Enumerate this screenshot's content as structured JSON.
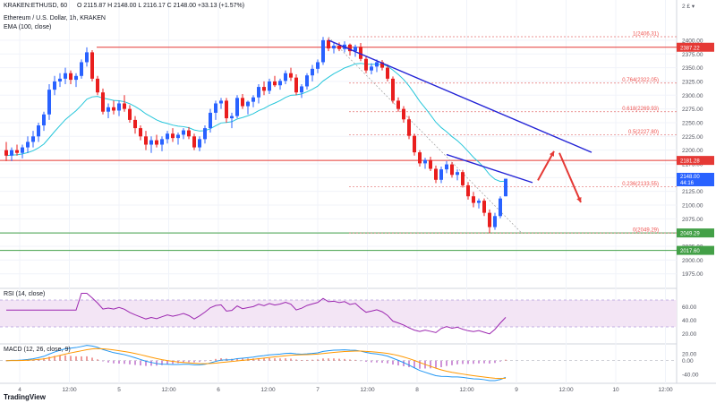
{
  "header": {
    "symbol": "KRAKEN:ETHUSD, 60",
    "ohlc": "O 2115.87  H 2148.00  L 2116.17  C 2148.00  +33.13 (+1.57%)",
    "title_line": "Ethereum / U.S. Dollar, 1h, KRAKEN",
    "ema_label": "EMA (100, close)"
  },
  "time_labels": [
    "4",
    "12:00",
    "5",
    "12:00",
    "6",
    "12:00",
    "7",
    "12:00",
    "8",
    "12:00",
    "9",
    "12:00",
    "10",
    "12:00"
  ],
  "price_axis": {
    "range": [
      1955,
      2408
    ],
    "ticks": [
      1975,
      2000,
      2025,
      2050,
      2075,
      2100,
      2125,
      2150,
      2175,
      2200,
      2225,
      2250,
      2275,
      2300,
      2325,
      2350,
      2375,
      2400
    ],
    "current_price_label": "2148.00",
    "countdown": "44:16",
    "label_2 E": "2 £ ▾"
  },
  "levels": [
    {
      "value": 2387.22,
      "label": "2387.22",
      "color": "#e53935"
    },
    {
      "value": 2181.28,
      "label": "2181.28",
      "color": "#e53935"
    },
    {
      "value": 2049.29,
      "label": "2049.29",
      "color": "#43a047"
    },
    {
      "value": 2017.6,
      "label": "2017.60",
      "color": "#43a047"
    }
  ],
  "fib": [
    {
      "value": 2406.31,
      "label": "1(2406.31)"
    },
    {
      "value": 2322.05,
      "label": "0.764(2322.05)"
    },
    {
      "value": 2269.93,
      "label": "0.618(2269.93)"
    },
    {
      "value": 2227.8,
      "label": "0.5(2227.80)"
    },
    {
      "value": 2133.55,
      "label": "0.236(2133.55)"
    },
    {
      "value": 2049.29,
      "label": "0(2049.29)"
    }
  ],
  "rsi": {
    "label": "RSI (14, close)",
    "range": [
      10,
      82
    ],
    "ticks": [
      20,
      40,
      60
    ],
    "band": [
      30,
      70
    ]
  },
  "macd": {
    "label": "MACD (12, 26, close, 9)",
    "range": [
      -55,
      38
    ],
    "ticks": [
      -40,
      0,
      20
    ]
  },
  "colors": {
    "up": "#2962ff",
    "down": "#e91e1e",
    "ema": "#26c6da",
    "trend": "#2323d6",
    "rsi": "#9c27b0",
    "rsi_band": "#f3e5f5",
    "macd": "#2196f3",
    "signal": "#ff9800"
  },
  "chart_data": {
    "type": "candlestick",
    "ema_period": 100,
    "candles": [
      {
        "o": 2200,
        "h": 2215,
        "l": 2180,
        "c": 2190
      },
      {
        "o": 2190,
        "h": 2205,
        "l": 2180,
        "c": 2200
      },
      {
        "o": 2200,
        "h": 2210,
        "l": 2190,
        "c": 2195
      },
      {
        "o": 2195,
        "h": 2210,
        "l": 2185,
        "c": 2205
      },
      {
        "o": 2205,
        "h": 2225,
        "l": 2195,
        "c": 2215
      },
      {
        "o": 2215,
        "h": 2235,
        "l": 2205,
        "c": 2225
      },
      {
        "o": 2225,
        "h": 2250,
        "l": 2215,
        "c": 2245
      },
      {
        "o": 2245,
        "h": 2270,
        "l": 2235,
        "c": 2265
      },
      {
        "o": 2265,
        "h": 2320,
        "l": 2255,
        "c": 2310
      },
      {
        "o": 2310,
        "h": 2335,
        "l": 2300,
        "c": 2325
      },
      {
        "o": 2325,
        "h": 2340,
        "l": 2315,
        "c": 2330
      },
      {
        "o": 2330,
        "h": 2350,
        "l": 2320,
        "c": 2340
      },
      {
        "o": 2340,
        "h": 2345,
        "l": 2320,
        "c": 2328
      },
      {
        "o": 2328,
        "h": 2340,
        "l": 2315,
        "c": 2335
      },
      {
        "o": 2335,
        "h": 2365,
        "l": 2330,
        "c": 2360
      },
      {
        "o": 2360,
        "h": 2387,
        "l": 2352,
        "c": 2378
      },
      {
        "o": 2378,
        "h": 2382,
        "l": 2325,
        "c": 2330
      },
      {
        "o": 2330,
        "h": 2335,
        "l": 2300,
        "c": 2305
      },
      {
        "o": 2305,
        "h": 2312,
        "l": 2265,
        "c": 2270
      },
      {
        "o": 2270,
        "h": 2285,
        "l": 2258,
        "c": 2278
      },
      {
        "o": 2278,
        "h": 2290,
        "l": 2265,
        "c": 2272
      },
      {
        "o": 2272,
        "h": 2290,
        "l": 2262,
        "c": 2285
      },
      {
        "o": 2285,
        "h": 2300,
        "l": 2270,
        "c": 2275
      },
      {
        "o": 2275,
        "h": 2282,
        "l": 2250,
        "c": 2255
      },
      {
        "o": 2255,
        "h": 2262,
        "l": 2230,
        "c": 2240
      },
      {
        "o": 2240,
        "h": 2245,
        "l": 2218,
        "c": 2225
      },
      {
        "o": 2225,
        "h": 2235,
        "l": 2200,
        "c": 2210
      },
      {
        "o": 2210,
        "h": 2225,
        "l": 2195,
        "c": 2218
      },
      {
        "o": 2218,
        "h": 2228,
        "l": 2205,
        "c": 2210
      },
      {
        "o": 2210,
        "h": 2225,
        "l": 2198,
        "c": 2220
      },
      {
        "o": 2220,
        "h": 2235,
        "l": 2212,
        "c": 2230
      },
      {
        "o": 2230,
        "h": 2240,
        "l": 2215,
        "c": 2222
      },
      {
        "o": 2222,
        "h": 2232,
        "l": 2210,
        "c": 2228
      },
      {
        "o": 2228,
        "h": 2240,
        "l": 2220,
        "c": 2236
      },
      {
        "o": 2236,
        "h": 2242,
        "l": 2220,
        "c": 2225
      },
      {
        "o": 2225,
        "h": 2230,
        "l": 2200,
        "c": 2205
      },
      {
        "o": 2205,
        "h": 2225,
        "l": 2198,
        "c": 2220
      },
      {
        "o": 2220,
        "h": 2245,
        "l": 2212,
        "c": 2240
      },
      {
        "o": 2240,
        "h": 2275,
        "l": 2232,
        "c": 2268
      },
      {
        "o": 2268,
        "h": 2290,
        "l": 2255,
        "c": 2285
      },
      {
        "o": 2285,
        "h": 2295,
        "l": 2275,
        "c": 2290
      },
      {
        "o": 2290,
        "h": 2295,
        "l": 2250,
        "c": 2258
      },
      {
        "o": 2258,
        "h": 2268,
        "l": 2240,
        "c": 2262
      },
      {
        "o": 2262,
        "h": 2300,
        "l": 2258,
        "c": 2295
      },
      {
        "o": 2295,
        "h": 2302,
        "l": 2275,
        "c": 2280
      },
      {
        "o": 2280,
        "h": 2290,
        "l": 2265,
        "c": 2288
      },
      {
        "o": 2288,
        "h": 2300,
        "l": 2278,
        "c": 2296
      },
      {
        "o": 2296,
        "h": 2320,
        "l": 2285,
        "c": 2315
      },
      {
        "o": 2315,
        "h": 2325,
        "l": 2300,
        "c": 2308
      },
      {
        "o": 2308,
        "h": 2330,
        "l": 2302,
        "c": 2325
      },
      {
        "o": 2325,
        "h": 2335,
        "l": 2315,
        "c": 2318
      },
      {
        "o": 2318,
        "h": 2330,
        "l": 2310,
        "c": 2326
      },
      {
        "o": 2326,
        "h": 2345,
        "l": 2320,
        "c": 2340
      },
      {
        "o": 2340,
        "h": 2350,
        "l": 2326,
        "c": 2332
      },
      {
        "o": 2332,
        "h": 2338,
        "l": 2300,
        "c": 2305
      },
      {
        "o": 2305,
        "h": 2320,
        "l": 2295,
        "c": 2316
      },
      {
        "o": 2316,
        "h": 2340,
        "l": 2310,
        "c": 2336
      },
      {
        "o": 2336,
        "h": 2355,
        "l": 2325,
        "c": 2348
      },
      {
        "o": 2348,
        "h": 2365,
        "l": 2340,
        "c": 2360
      },
      {
        "o": 2360,
        "h": 2406,
        "l": 2355,
        "c": 2400
      },
      {
        "o": 2400,
        "h": 2404,
        "l": 2380,
        "c": 2385
      },
      {
        "o": 2385,
        "h": 2395,
        "l": 2376,
        "c": 2390
      },
      {
        "o": 2390,
        "h": 2396,
        "l": 2380,
        "c": 2384
      },
      {
        "o": 2384,
        "h": 2398,
        "l": 2378,
        "c": 2392
      },
      {
        "o": 2392,
        "h": 2394,
        "l": 2372,
        "c": 2380
      },
      {
        "o": 2380,
        "h": 2392,
        "l": 2370,
        "c": 2388
      },
      {
        "o": 2388,
        "h": 2395,
        "l": 2362,
        "c": 2366
      },
      {
        "o": 2366,
        "h": 2372,
        "l": 2340,
        "c": 2345
      },
      {
        "o": 2345,
        "h": 2358,
        "l": 2338,
        "c": 2352
      },
      {
        "o": 2352,
        "h": 2365,
        "l": 2342,
        "c": 2360
      },
      {
        "o": 2360,
        "h": 2364,
        "l": 2345,
        "c": 2350
      },
      {
        "o": 2350,
        "h": 2356,
        "l": 2325,
        "c": 2330
      },
      {
        "o": 2330,
        "h": 2334,
        "l": 2285,
        "c": 2290
      },
      {
        "o": 2290,
        "h": 2296,
        "l": 2270,
        "c": 2275
      },
      {
        "o": 2275,
        "h": 2280,
        "l": 2250,
        "c": 2256
      },
      {
        "o": 2256,
        "h": 2262,
        "l": 2220,
        "c": 2226
      },
      {
        "o": 2226,
        "h": 2230,
        "l": 2190,
        "c": 2196
      },
      {
        "o": 2196,
        "h": 2200,
        "l": 2170,
        "c": 2176
      },
      {
        "o": 2176,
        "h": 2186,
        "l": 2166,
        "c": 2182
      },
      {
        "o": 2182,
        "h": 2188,
        "l": 2162,
        "c": 2166
      },
      {
        "o": 2166,
        "h": 2172,
        "l": 2140,
        "c": 2146
      },
      {
        "o": 2146,
        "h": 2170,
        "l": 2140,
        "c": 2165
      },
      {
        "o": 2165,
        "h": 2180,
        "l": 2158,
        "c": 2174
      },
      {
        "o": 2174,
        "h": 2178,
        "l": 2150,
        "c": 2155
      },
      {
        "o": 2155,
        "h": 2165,
        "l": 2145,
        "c": 2160
      },
      {
        "o": 2160,
        "h": 2164,
        "l": 2132,
        "c": 2136
      },
      {
        "o": 2136,
        "h": 2142,
        "l": 2110,
        "c": 2116
      },
      {
        "o": 2116,
        "h": 2124,
        "l": 2096,
        "c": 2104
      },
      {
        "o": 2104,
        "h": 2112,
        "l": 2094,
        "c": 2108
      },
      {
        "o": 2108,
        "h": 2112,
        "l": 2080,
        "c": 2086
      },
      {
        "o": 2086,
        "h": 2092,
        "l": 2049,
        "c": 2060
      },
      {
        "o": 2060,
        "h": 2086,
        "l": 2055,
        "c": 2080
      },
      {
        "o": 2080,
        "h": 2116,
        "l": 2076,
        "c": 2112
      },
      {
        "o": 2116,
        "h": 2148,
        "l": 2116,
        "c": 2148
      }
    ],
    "trendlines": [
      {
        "from": {
          "candle": 60,
          "price": 2400
        },
        "to": {
          "candle": 109,
          "price": 2196
        }
      },
      {
        "from": {
          "candle": 82,
          "price": 2192
        },
        "to": {
          "candle": 98,
          "price": 2141
        }
      }
    ],
    "annotations": {
      "up_arrow": {
        "from": {
          "candle": 99,
          "price": 2145
        },
        "to": {
          "candle": 102,
          "price": 2198
        }
      },
      "down_arrow": {
        "from": {
          "candle": 103,
          "price": 2195
        },
        "to": {
          "candle": 107,
          "price": 2105
        }
      }
    }
  },
  "footer": {
    "brand": "TradingView"
  }
}
